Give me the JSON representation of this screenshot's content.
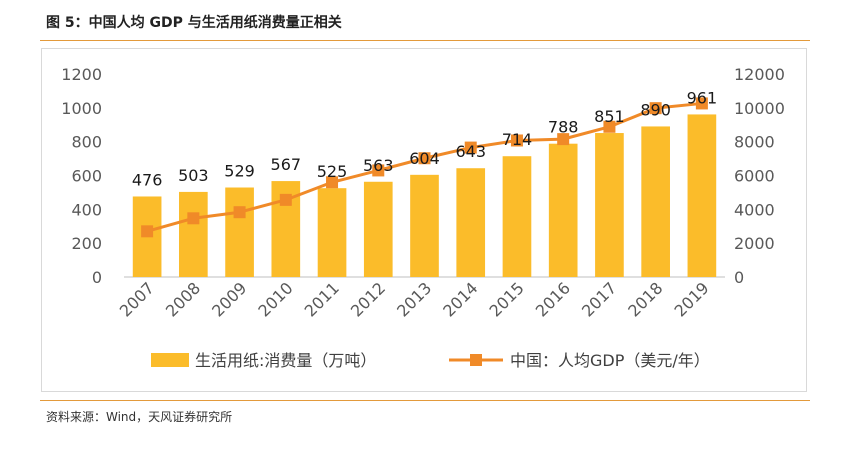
{
  "figure": {
    "title": "图 5：中国人均 GDP 与生活用纸消费量正相关",
    "source": "资料来源：Wind，天风证券研究所"
  },
  "colors": {
    "bar": "#FBBC2A",
    "line": "#F08A28",
    "rule": "#E39A3B"
  },
  "chart_data": {
    "type": "bar",
    "categories": [
      "2007",
      "2008",
      "2009",
      "2010",
      "2011",
      "2012",
      "2013",
      "2014",
      "2015",
      "2016",
      "2017",
      "2018",
      "2019"
    ],
    "series": [
      {
        "name": "生活用纸:消费量（万吨）",
        "type": "bar",
        "axis": "left",
        "values": [
          476,
          503,
          529,
          567,
          525,
          563,
          604,
          643,
          714,
          788,
          851,
          890,
          961
        ],
        "labels": [
          "476",
          "503",
          "529",
          "567",
          "525",
          "563",
          "604",
          "643",
          "714",
          "788",
          "851",
          "890",
          "961"
        ]
      },
      {
        "name": "中国：人均GDP（美元/年）",
        "type": "line",
        "axis": "right",
        "values": [
          2700,
          3470,
          3830,
          4560,
          5600,
          6300,
          7020,
          7650,
          8070,
          8150,
          8880,
          9980,
          10260
        ]
      }
    ],
    "y_left": {
      "lim": [
        0,
        1200
      ],
      "ticks": [
        "0",
        "200",
        "400",
        "600",
        "800",
        "1000",
        "1200"
      ]
    },
    "y_right": {
      "lim": [
        0,
        12000
      ],
      "ticks": [
        "0",
        "2000",
        "4000",
        "6000",
        "8000",
        "10000",
        "12000"
      ]
    },
    "grid": false,
    "legend": "bottom"
  }
}
